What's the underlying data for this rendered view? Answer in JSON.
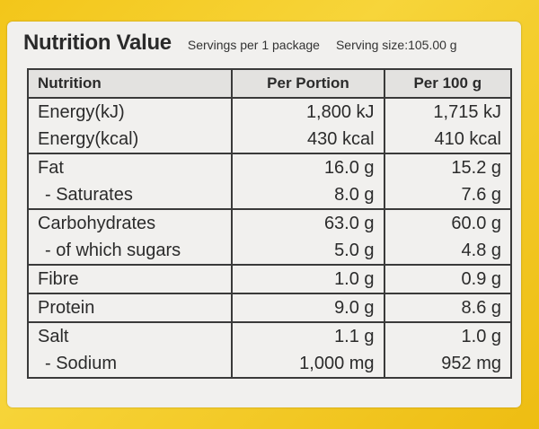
{
  "header": {
    "title": "Nutrition Value",
    "servings": "Servings per 1 package",
    "serving_size": "Serving size:105.00 g"
  },
  "table": {
    "columns": [
      "Nutrition",
      "Per Portion",
      "Per 100 g"
    ],
    "groups": [
      {
        "rows": [
          {
            "name": "Energy(kJ)",
            "portion": "1,800 kJ",
            "per100": "1,715 kJ"
          },
          {
            "name": "Energy(kcal)",
            "portion": "430 kcal",
            "per100": "410 kcal"
          }
        ]
      },
      {
        "rows": [
          {
            "name": "Fat",
            "portion": "16.0 g",
            "per100": "15.2 g"
          },
          {
            "name": "- Saturates",
            "portion": "8.0 g",
            "per100": "7.6 g"
          }
        ]
      },
      {
        "rows": [
          {
            "name": "Carbohydrates",
            "portion": "63.0 g",
            "per100": "60.0 g"
          },
          {
            "name": "- of which sugars",
            "portion": "5.0 g",
            "per100": "4.8 g"
          }
        ]
      },
      {
        "rows": [
          {
            "name": "Fibre",
            "portion": "1.0 g",
            "per100": "0.9 g"
          }
        ]
      },
      {
        "rows": [
          {
            "name": "Protein",
            "portion": "9.0 g",
            "per100": "8.6 g"
          }
        ]
      },
      {
        "rows": [
          {
            "name": "Salt",
            "portion": "1.1 g",
            "per100": "1.0 g"
          },
          {
            "name": "- Sodium",
            "portion": "1,000 mg",
            "per100": "952 mg"
          }
        ]
      }
    ]
  }
}
